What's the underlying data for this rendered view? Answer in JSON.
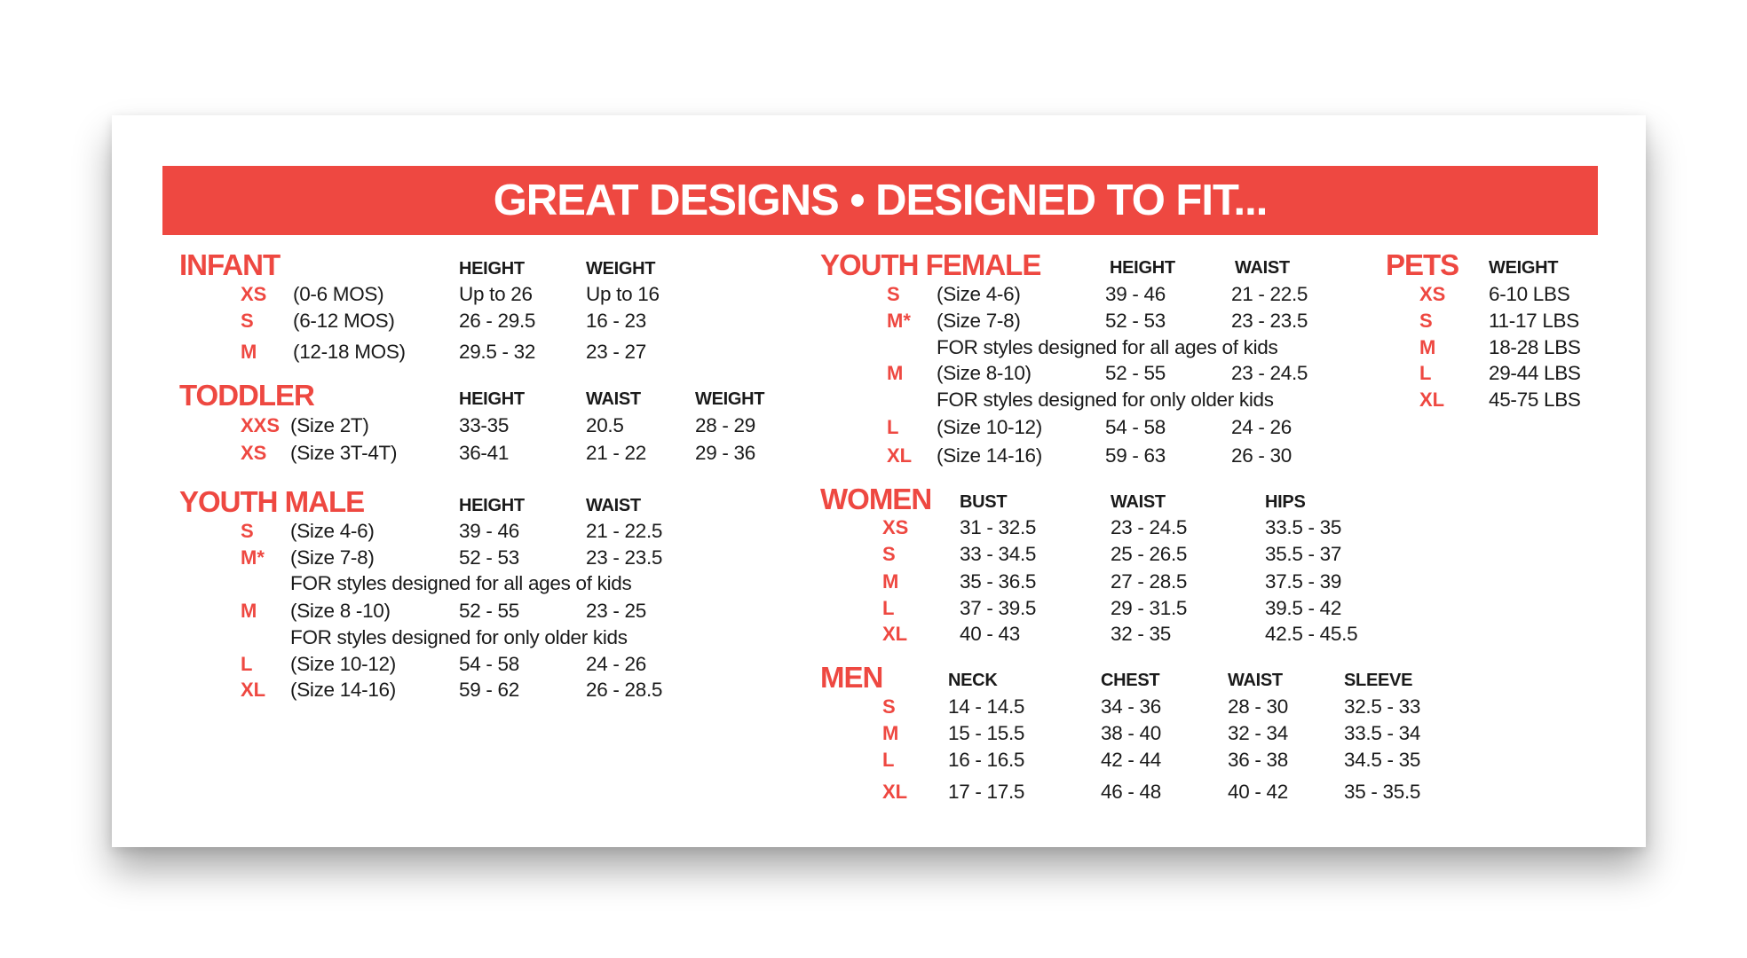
{
  "colors": {
    "accent": "#EE4841",
    "text": "#1a1a1a",
    "background": "#ffffff"
  },
  "banner": {
    "title": "GREAT DESIGNS • DESIGNED TO FIT..."
  },
  "sections": {
    "infant": {
      "title": "INFANT",
      "headers": [
        "HEIGHT",
        "WEIGHT"
      ],
      "rows": [
        {
          "size": "XS",
          "desc": "(0-6 MOS)",
          "values": [
            "Up to 26",
            "Up to 16"
          ]
        },
        {
          "size": "S",
          "desc": "(6-12 MOS)",
          "values": [
            "26 - 29.5",
            "16 - 23"
          ]
        },
        {
          "size": "M",
          "desc": "(12-18 MOS)",
          "values": [
            "29.5 - 32",
            "23 - 27"
          ]
        }
      ]
    },
    "toddler": {
      "title": "TODDLER",
      "headers": [
        "HEIGHT",
        "WAIST",
        "WEIGHT"
      ],
      "rows": [
        {
          "size": "XXS",
          "desc": "(Size 2T)",
          "values": [
            "33-35",
            "20.5",
            "28 - 29"
          ]
        },
        {
          "size": "XS",
          "desc": "(Size 3T-4T)",
          "values": [
            "36-41",
            "21 - 22",
            "29 - 36"
          ]
        }
      ]
    },
    "youth_male": {
      "title": "YOUTH MALE",
      "headers": [
        "HEIGHT",
        "WAIST"
      ],
      "rows": [
        {
          "size": "S",
          "desc": "(Size 4-6)",
          "values": [
            "39 - 46",
            "21 - 22.5"
          ]
        },
        {
          "size": "M*",
          "desc": "(Size 7-8)",
          "values": [
            "52 - 53",
            "23 - 23.5"
          ]
        },
        {
          "note": "FOR styles designed for all ages of kids"
        },
        {
          "size": "M",
          "desc": "(Size 8 -10)",
          "values": [
            "52 - 55",
            "23 - 25"
          ]
        },
        {
          "note": "FOR styles designed for only older kids"
        },
        {
          "size": "L",
          "desc": "(Size 10-12)",
          "values": [
            "54 - 58",
            "24 - 26"
          ]
        },
        {
          "size": "XL",
          "desc": "(Size 14-16)",
          "values": [
            "59 - 62",
            "26 - 28.5"
          ]
        }
      ]
    },
    "youth_female": {
      "title": "YOUTH FEMALE",
      "headers": [
        "HEIGHT",
        "WAIST"
      ],
      "rows": [
        {
          "size": "S",
          "desc": "(Size 4-6)",
          "values": [
            "39 - 46",
            "21 - 22.5"
          ]
        },
        {
          "size": "M*",
          "desc": "(Size 7-8)",
          "values": [
            "52 - 53",
            "23 - 23.5"
          ]
        },
        {
          "note": "FOR styles designed for all ages of kids"
        },
        {
          "size": "M",
          "desc": "(Size 8-10)",
          "values": [
            "52 - 55",
            "23 - 24.5"
          ]
        },
        {
          "note": "FOR styles designed for only older kids"
        },
        {
          "size": "L",
          "desc": "(Size 10-12)",
          "values": [
            "54 - 58",
            "24 - 26"
          ]
        },
        {
          "size": "XL",
          "desc": "(Size 14-16)",
          "values": [
            "59 - 63",
            "26 - 30"
          ]
        }
      ]
    },
    "women": {
      "title": "WOMEN",
      "headers": [
        "BUST",
        "WAIST",
        "HIPS"
      ],
      "rows": [
        {
          "size": "XS",
          "values": [
            "31 - 32.5",
            "23 - 24.5",
            "33.5 - 35"
          ]
        },
        {
          "size": "S",
          "values": [
            "33 - 34.5",
            "25 - 26.5",
            "35.5 - 37"
          ]
        },
        {
          "size": "M",
          "values": [
            "35 - 36.5",
            "27 - 28.5",
            "37.5 - 39"
          ]
        },
        {
          "size": "L",
          "values": [
            "37 - 39.5",
            "29 - 31.5",
            "39.5 - 42"
          ]
        },
        {
          "size": "XL",
          "values": [
            "40 - 43",
            "32 - 35",
            "42.5 - 45.5"
          ]
        }
      ]
    },
    "men": {
      "title": "MEN",
      "headers": [
        "NECK",
        "CHEST",
        "WAIST",
        "SLEEVE"
      ],
      "rows": [
        {
          "size": "S",
          "values": [
            "14 - 14.5",
            "34 - 36",
            "28 - 30",
            "32.5 - 33"
          ]
        },
        {
          "size": "M",
          "values": [
            "15 - 15.5",
            "38 - 40",
            "32 - 34",
            "33.5 - 34"
          ]
        },
        {
          "size": "L",
          "values": [
            "16 - 16.5",
            "42 - 44",
            "36 - 38",
            "34.5 - 35"
          ]
        },
        {
          "size": "XL",
          "values": [
            "17 - 17.5",
            "46 - 48",
            "40 - 42",
            "35 - 35.5"
          ]
        }
      ]
    },
    "pets": {
      "title": "PETS",
      "headers": [
        "WEIGHT"
      ],
      "rows": [
        {
          "size": "XS",
          "values": [
            "6-10 LBS"
          ]
        },
        {
          "size": "S",
          "values": [
            "11-17 LBS"
          ]
        },
        {
          "size": "M",
          "values": [
            "18-28 LBS"
          ]
        },
        {
          "size": "L",
          "values": [
            "29-44 LBS"
          ]
        },
        {
          "size": "XL",
          "values": [
            "45-75 LBS"
          ]
        }
      ]
    }
  }
}
